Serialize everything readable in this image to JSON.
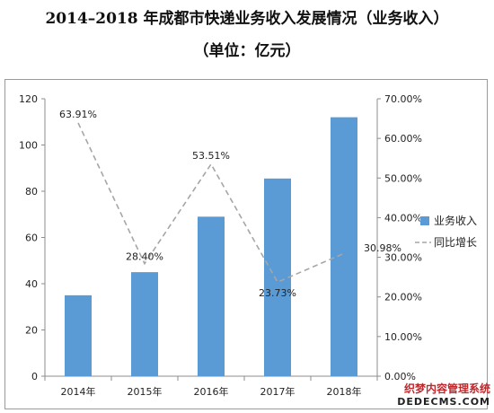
{
  "title": "2014–2018 年成都市快递业务收入发展情况（业务收入）",
  "subtitle": "（单位：亿元）",
  "chart_data": {
    "type": "bar",
    "categories": [
      "2014年",
      "2015年",
      "2016年",
      "2017年",
      "2018年"
    ],
    "series": [
      {
        "name": "业务收入",
        "type": "bar",
        "axis": "left",
        "color": "#5b9bd5",
        "values": [
          35,
          45,
          69,
          85.5,
          112
        ]
      },
      {
        "name": "同比增长",
        "type": "line",
        "style": "dashed",
        "axis": "right",
        "color": "#a6a6a6",
        "values": [
          63.91,
          28.4,
          53.51,
          23.73,
          30.98
        ],
        "labels": [
          "63.91%",
          "28.40%",
          "53.51%",
          "23.73%",
          "30.98%"
        ]
      }
    ],
    "y_left": {
      "min": 0,
      "max": 120,
      "ticks": [
        "0",
        "20",
        "40",
        "60",
        "80",
        "100",
        "120"
      ]
    },
    "y_right": {
      "min": 0,
      "max": 70,
      "ticks": [
        "0.00%",
        "10.00%",
        "20.00%",
        "30.00%",
        "40.00%",
        "50.00%",
        "60.00%",
        "70.00%"
      ]
    },
    "grid": false,
    "legend": "right"
  },
  "watermark": {
    "line1": "织梦内容管理系统",
    "line2": "DEDECMS.COM"
  }
}
